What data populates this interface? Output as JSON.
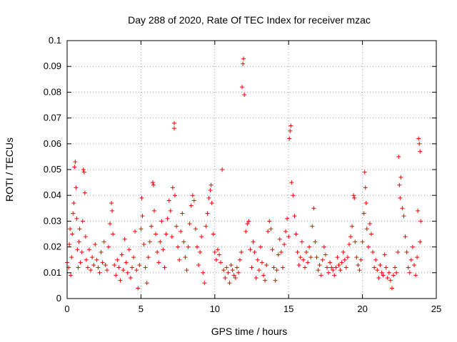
{
  "chart_data": {
    "type": "scatter",
    "title": "Day 288 of 2020, Rate Of TEC Index for receiver mzac",
    "xlabel": "GPS time / hours",
    "ylabel": "ROTI / TECUs",
    "xlim": [
      0,
      25
    ],
    "ylim": [
      0,
      0.1
    ],
    "xticks": [
      "0",
      "5",
      "10",
      "15",
      "20",
      "25"
    ],
    "yticks": [
      "0",
      "0.01",
      "0.02",
      "0.03",
      "0.04",
      "0.05",
      "0.06",
      "0.07",
      "0.08",
      "0.09",
      "0.1"
    ],
    "grid": true,
    "marker": "+",
    "color": "#ff0000",
    "series": [
      {
        "name": "ROTI",
        "points": [
          [
            0.0,
            0.014
          ],
          [
            0.1,
            0.012
          ],
          [
            0.15,
            0.021
          ],
          [
            0.2,
            0.027
          ],
          [
            0.25,
            0.009
          ],
          [
            0.3,
            0.016
          ],
          [
            0.35,
            0.025
          ],
          [
            0.4,
            0.033
          ],
          [
            0.45,
            0.037
          ],
          [
            0.5,
            0.051
          ],
          [
            0.55,
            0.053
          ],
          [
            0.6,
            0.043
          ],
          [
            0.65,
            0.031
          ],
          [
            0.7,
            0.019
          ],
          [
            0.75,
            0.012
          ],
          [
            0.8,
            0.022
          ],
          [
            0.85,
            0.027
          ],
          [
            0.9,
            0.014
          ],
          [
            1.0,
            0.018
          ],
          [
            1.05,
            0.03
          ],
          [
            1.1,
            0.05
          ],
          [
            1.15,
            0.049
          ],
          [
            1.2,
            0.041
          ],
          [
            1.25,
            0.024
          ],
          [
            1.3,
            0.015
          ],
          [
            1.4,
            0.012
          ],
          [
            1.5,
            0.019
          ],
          [
            1.6,
            0.011
          ],
          [
            1.7,
            0.016
          ],
          [
            1.8,
            0.013
          ],
          [
            1.9,
            0.021
          ],
          [
            2.0,
            0.015
          ],
          [
            2.1,
            0.012
          ],
          [
            2.2,
            0.01
          ],
          [
            2.3,
            0.018
          ],
          [
            2.4,
            0.014
          ],
          [
            2.5,
            0.022
          ],
          [
            2.6,
            0.013
          ],
          [
            2.7,
            0.011
          ],
          [
            2.8,
            0.02
          ],
          [
            2.9,
            0.029
          ],
          [
            3.0,
            0.037
          ],
          [
            3.05,
            0.034
          ],
          [
            3.1,
            0.025
          ],
          [
            3.2,
            0.013
          ],
          [
            3.3,
            0.009
          ],
          [
            3.4,
            0.015
          ],
          [
            3.5,
            0.012
          ],
          [
            3.6,
            0.007
          ],
          [
            3.7,
            0.017
          ],
          [
            3.8,
            0.011
          ],
          [
            3.9,
            0.023
          ],
          [
            4.0,
            0.014
          ],
          [
            4.1,
            0.01
          ],
          [
            4.2,
            0.019
          ],
          [
            4.3,
            0.008
          ],
          [
            4.4,
            0.012
          ],
          [
            4.5,
            0.016
          ],
          [
            4.6,
            0.026
          ],
          [
            4.7,
            0.011
          ],
          [
            4.8,
            0.004
          ],
          [
            4.9,
            0.013
          ],
          [
            5.0,
            0.027
          ],
          [
            5.05,
            0.039
          ],
          [
            5.1,
            0.032
          ],
          [
            5.2,
            0.021
          ],
          [
            5.3,
            0.012
          ],
          [
            5.4,
            0.006
          ],
          [
            5.5,
            0.016
          ],
          [
            5.6,
            0.022
          ],
          [
            5.7,
            0.028
          ],
          [
            5.8,
            0.045
          ],
          [
            5.85,
            0.044
          ],
          [
            5.9,
            0.034
          ],
          [
            6.0,
            0.025
          ],
          [
            6.1,
            0.018
          ],
          [
            6.2,
            0.014
          ],
          [
            6.3,
            0.022
          ],
          [
            6.4,
            0.03
          ],
          [
            6.5,
            0.019
          ],
          [
            6.6,
            0.012
          ],
          [
            6.7,
            0.025
          ],
          [
            6.8,
            0.031
          ],
          [
            6.9,
            0.038
          ],
          [
            7.0,
            0.034
          ],
          [
            7.1,
            0.024
          ],
          [
            7.15,
            0.043
          ],
          [
            7.25,
            0.068
          ],
          [
            7.25,
            0.066
          ],
          [
            7.3,
            0.04
          ],
          [
            7.4,
            0.028
          ],
          [
            7.5,
            0.02
          ],
          [
            7.6,
            0.015
          ],
          [
            7.7,
            0.026
          ],
          [
            7.8,
            0.033
          ],
          [
            7.9,
            0.022
          ],
          [
            8.0,
            0.016
          ],
          [
            8.1,
            0.011
          ],
          [
            8.2,
            0.02
          ],
          [
            8.3,
            0.029
          ],
          [
            8.4,
            0.036
          ],
          [
            8.5,
            0.04
          ],
          [
            8.6,
            0.038
          ],
          [
            8.7,
            0.027
          ],
          [
            8.8,
            0.02
          ],
          [
            8.9,
            0.013
          ],
          [
            9.0,
            0.018
          ],
          [
            9.1,
            0.024
          ],
          [
            9.2,
            0.01
          ],
          [
            9.3,
            0.006
          ],
          [
            9.4,
            0.028
          ],
          [
            9.5,
            0.033
          ],
          [
            9.6,
            0.039
          ],
          [
            9.7,
            0.042
          ],
          [
            9.75,
            0.044
          ],
          [
            9.8,
            0.037
          ],
          [
            9.9,
            0.025
          ],
          [
            10.0,
            0.018
          ],
          [
            10.1,
            0.015
          ],
          [
            10.2,
            0.019
          ],
          [
            10.3,
            0.017
          ],
          [
            10.4,
            0.014
          ],
          [
            10.5,
            0.05
          ],
          [
            10.6,
            0.011
          ],
          [
            10.7,
            0.008
          ],
          [
            10.8,
            0.012
          ],
          [
            10.9,
            0.01
          ],
          [
            11.0,
            0.006
          ],
          [
            11.1,
            0.013
          ],
          [
            11.2,
            0.011
          ],
          [
            11.3,
            0.009
          ],
          [
            11.4,
            0.008
          ],
          [
            11.5,
            0.012
          ],
          [
            11.6,
            0.01
          ],
          [
            11.7,
            0.015
          ],
          [
            11.8,
            0.018
          ],
          [
            11.85,
            0.082
          ],
          [
            11.9,
            0.091
          ],
          [
            11.95,
            0.093
          ],
          [
            12.0,
            0.079
          ],
          [
            12.1,
            0.026
          ],
          [
            12.2,
            0.029
          ],
          [
            12.3,
            0.03
          ],
          [
            12.4,
            0.019
          ],
          [
            12.5,
            0.012
          ],
          [
            12.6,
            0.022
          ],
          [
            12.7,
            0.018
          ],
          [
            12.8,
            0.008
          ],
          [
            12.9,
            0.015
          ],
          [
            13.0,
            0.011
          ],
          [
            13.1,
            0.02
          ],
          [
            13.2,
            0.014
          ],
          [
            13.3,
            0.009
          ],
          [
            13.4,
            0.007
          ],
          [
            13.5,
            0.013
          ],
          [
            13.6,
            0.026
          ],
          [
            13.7,
            0.03
          ],
          [
            13.8,
            0.027
          ],
          [
            13.9,
            0.019
          ],
          [
            14.0,
            0.012
          ],
          [
            14.1,
            0.007
          ],
          [
            14.2,
            0.011
          ],
          [
            14.3,
            0.017
          ],
          [
            14.4,
            0.023
          ],
          [
            14.5,
            0.018
          ],
          [
            14.6,
            0.012
          ],
          [
            14.7,
            0.021
          ],
          [
            14.8,
            0.026
          ],
          [
            14.9,
            0.031
          ],
          [
            15.0,
            0.024
          ],
          [
            15.05,
            0.062
          ],
          [
            15.1,
            0.065
          ],
          [
            15.15,
            0.067
          ],
          [
            15.2,
            0.045
          ],
          [
            15.3,
            0.04
          ],
          [
            15.4,
            0.032
          ],
          [
            15.5,
            0.025
          ],
          [
            15.6,
            0.018
          ],
          [
            15.7,
            0.013
          ],
          [
            15.8,
            0.016
          ],
          [
            15.9,
            0.022
          ],
          [
            16.0,
            0.015
          ],
          [
            16.1,
            0.012
          ],
          [
            16.2,
            0.018
          ],
          [
            16.3,
            0.014
          ],
          [
            16.4,
            0.02
          ],
          [
            16.5,
            0.016
          ],
          [
            16.6,
            0.028
          ],
          [
            16.7,
            0.035
          ],
          [
            16.8,
            0.022
          ],
          [
            16.9,
            0.016
          ],
          [
            17.0,
            0.011
          ],
          [
            17.1,
            0.013
          ],
          [
            17.2,
            0.009
          ],
          [
            17.3,
            0.015
          ],
          [
            17.4,
            0.02
          ],
          [
            17.5,
            0.017
          ],
          [
            17.6,
            0.012
          ],
          [
            17.7,
            0.01
          ],
          [
            17.8,
            0.014
          ],
          [
            17.9,
            0.012
          ],
          [
            18.0,
            0.011
          ],
          [
            18.1,
            0.009
          ],
          [
            18.2,
            0.012
          ],
          [
            18.3,
            0.016
          ],
          [
            18.4,
            0.013
          ],
          [
            18.5,
            0.011
          ],
          [
            18.6,
            0.014
          ],
          [
            18.7,
            0.018
          ],
          [
            18.8,
            0.015
          ],
          [
            18.9,
            0.012
          ],
          [
            19.0,
            0.016
          ],
          [
            19.1,
            0.021
          ],
          [
            19.2,
            0.024
          ],
          [
            19.3,
            0.028
          ],
          [
            19.4,
            0.04
          ],
          [
            19.45,
            0.039
          ],
          [
            19.5,
            0.022
          ],
          [
            19.6,
            0.016
          ],
          [
            19.7,
            0.013
          ],
          [
            19.8,
            0.011
          ],
          [
            19.9,
            0.015
          ],
          [
            20.0,
            0.022
          ],
          [
            20.1,
            0.033
          ],
          [
            20.15,
            0.049
          ],
          [
            20.2,
            0.043
          ],
          [
            20.25,
            0.037
          ],
          [
            20.3,
            0.027
          ],
          [
            20.4,
            0.02
          ],
          [
            20.5,
            0.029
          ],
          [
            20.6,
            0.025
          ],
          [
            20.7,
            0.018
          ],
          [
            20.8,
            0.012
          ],
          [
            20.9,
            0.015
          ],
          [
            21.0,
            0.011
          ],
          [
            21.1,
            0.008
          ],
          [
            21.2,
            0.013
          ],
          [
            21.3,
            0.01
          ],
          [
            21.4,
            0.009
          ],
          [
            21.5,
            0.017
          ],
          [
            21.6,
            0.012
          ],
          [
            21.7,
            0.008
          ],
          [
            21.8,
            0.01
          ],
          [
            21.9,
            0.007
          ],
          [
            22.0,
            0.004
          ],
          [
            22.1,
            0.009
          ],
          [
            22.2,
            0.012
          ],
          [
            22.3,
            0.01
          ],
          [
            22.4,
            0.018
          ],
          [
            22.45,
            0.055
          ],
          [
            22.5,
            0.044
          ],
          [
            22.55,
            0.039
          ],
          [
            22.6,
            0.047
          ],
          [
            22.7,
            0.035
          ],
          [
            22.8,
            0.032
          ],
          [
            22.9,
            0.024
          ],
          [
            23.0,
            0.018
          ],
          [
            23.1,
            0.012
          ],
          [
            23.2,
            0.01
          ],
          [
            23.3,
            0.015
          ],
          [
            23.4,
            0.02
          ],
          [
            23.5,
            0.013
          ],
          [
            23.6,
            0.009
          ],
          [
            23.7,
            0.016
          ],
          [
            23.75,
            0.034
          ],
          [
            23.8,
            0.062
          ],
          [
            23.85,
            0.06
          ],
          [
            23.9,
            0.057
          ],
          [
            23.95,
            0.03
          ],
          [
            23.9,
            0.022
          ]
        ]
      }
    ]
  }
}
